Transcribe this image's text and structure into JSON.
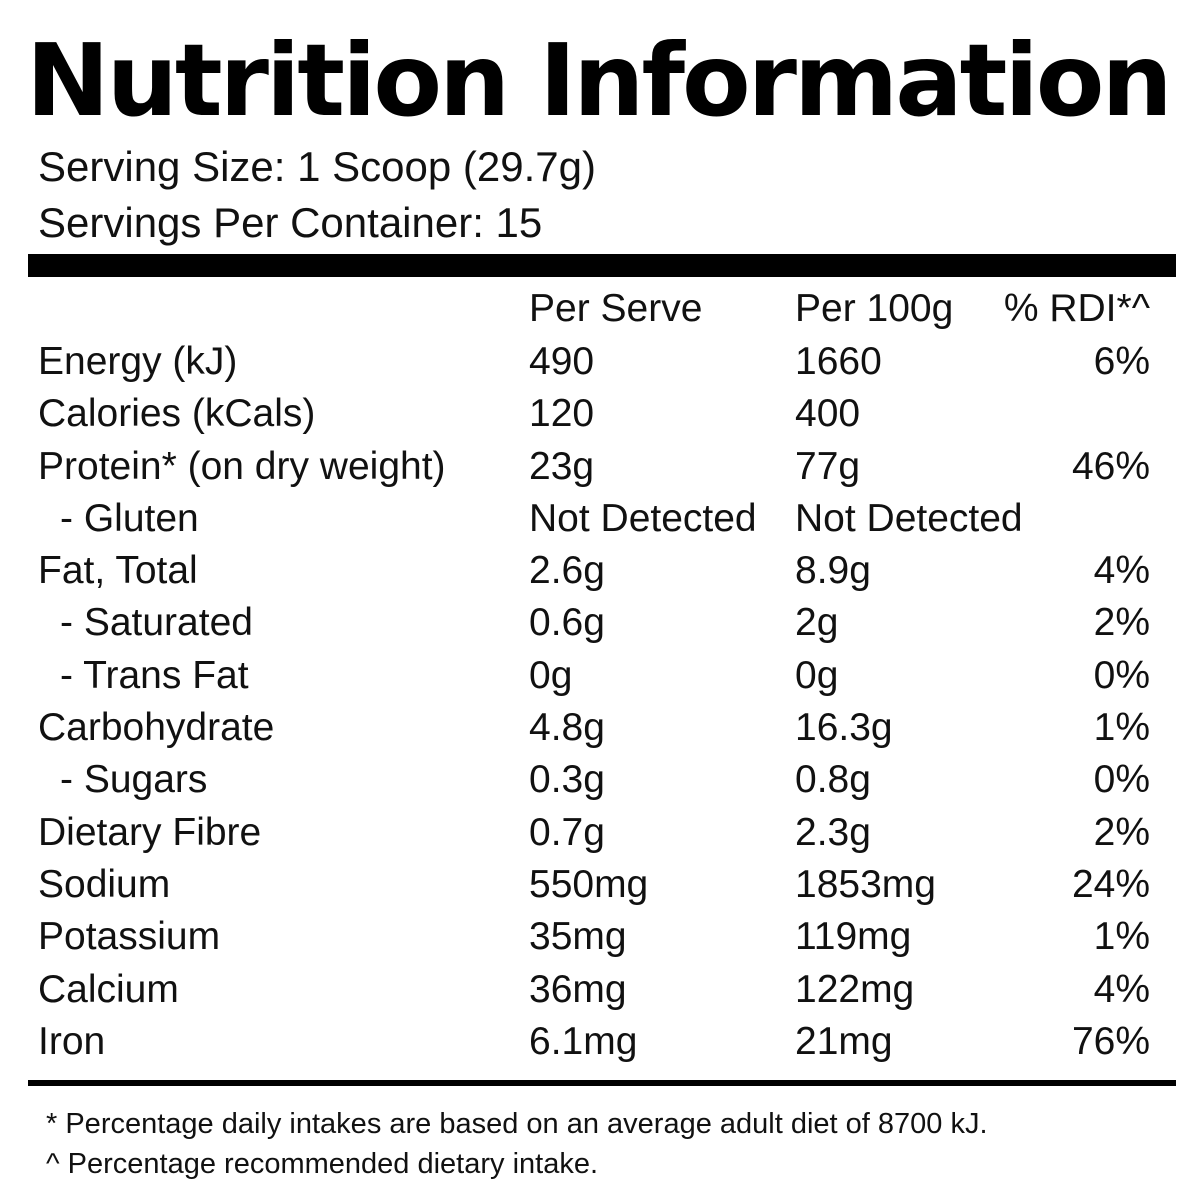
{
  "title": "Nutrition Information",
  "serving_size": "Serving Size: 1 Scoop (29.7g)",
  "servings_per_container": "Servings Per Container: 15",
  "columns": {
    "per_serve": "Per Serve",
    "per_100g": "Per 100g",
    "rdi": "% RDI*^"
  },
  "rows": [
    {
      "name": "Energy (kJ)",
      "per_serve": "490",
      "per_100g": "1660",
      "rdi": "6%"
    },
    {
      "name": "Calories (kCals)",
      "per_serve": "120",
      "per_100g": "400",
      "rdi": ""
    },
    {
      "name": "Protein* (on dry weight)",
      "per_serve": "23g",
      "per_100g": "77g",
      "rdi": "46%"
    },
    {
      "name": "- Gluten",
      "per_serve": "Not Detected",
      "per_100g": "Not Detected",
      "rdi": ""
    },
    {
      "name": "Fat, Total",
      "per_serve": "2.6g",
      "per_100g": "8.9g",
      "rdi": "4%"
    },
    {
      "name": "- Saturated",
      "per_serve": "0.6g",
      "per_100g": "2g",
      "rdi": "2%"
    },
    {
      "name": "- Trans Fat",
      "per_serve": "0g",
      "per_100g": "0g",
      "rdi": "0%"
    },
    {
      "name": "Carbohydrate",
      "per_serve": "4.8g",
      "per_100g": "16.3g",
      "rdi": "1%"
    },
    {
      "name": "- Sugars",
      "per_serve": "0.3g",
      "per_100g": "0.8g",
      "rdi": "0%"
    },
    {
      "name": "Dietary Fibre",
      "per_serve": "0.7g",
      "per_100g": "2.3g",
      "rdi": "2%"
    },
    {
      "name": "Sodium",
      "per_serve": "550mg",
      "per_100g": "1853mg",
      "rdi": "24%"
    },
    {
      "name": "Potassium",
      "per_serve": "35mg",
      "per_100g": "119mg",
      "rdi": "1%"
    },
    {
      "name": "Calcium",
      "per_serve": "36mg",
      "per_100g": "122mg",
      "rdi": "4%"
    },
    {
      "name": "Iron",
      "per_serve": "6.1mg",
      "per_100g": "21mg",
      "rdi": "76%"
    }
  ],
  "footnotes": [
    "* Percentage daily intakes are based on an average adult diet of 8700 kJ.",
    "^ Percentage recommended dietary intake."
  ],
  "colors": {
    "text": "#111111",
    "rules": "#000000",
    "background": "#ffffff"
  }
}
